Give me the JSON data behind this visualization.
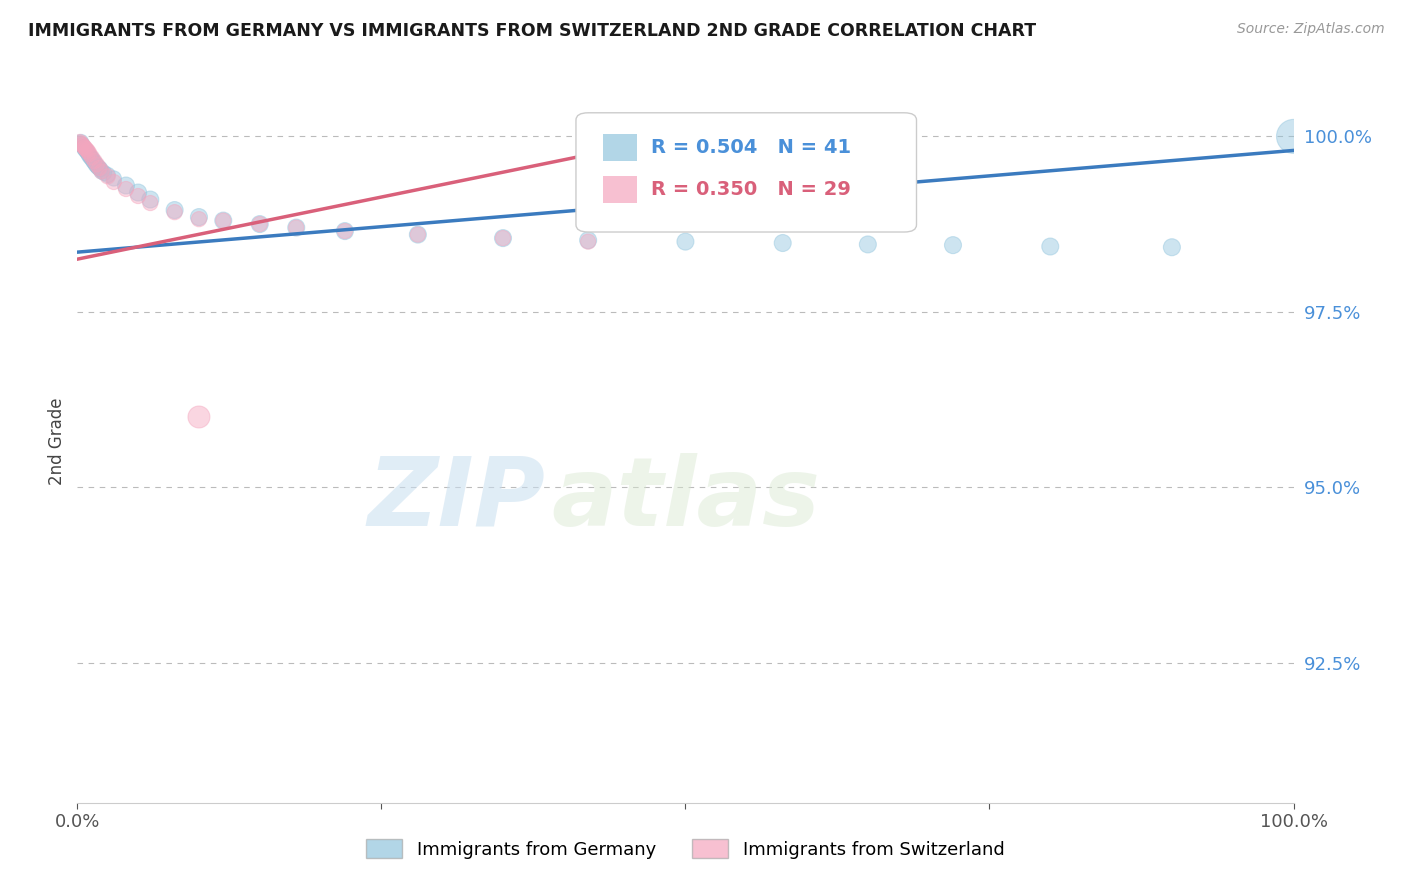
{
  "title": "IMMIGRANTS FROM GERMANY VS IMMIGRANTS FROM SWITZERLAND 2ND GRADE CORRELATION CHART",
  "source": "Source: ZipAtlas.com",
  "ylabel": "2nd Grade",
  "xlim": [
    0.0,
    1.0
  ],
  "ylim": [
    0.905,
    1.008
  ],
  "yticks": [
    0.925,
    0.95,
    0.975,
    1.0
  ],
  "ytick_labels": [
    "92.5%",
    "95.0%",
    "97.5%",
    "100.0%"
  ],
  "legend_blue_label": "Immigrants from Germany",
  "legend_pink_label": "Immigrants from Switzerland",
  "R_blue": 0.504,
  "N_blue": 41,
  "R_pink": 0.35,
  "N_pink": 29,
  "blue_color": "#92c5de",
  "pink_color": "#f4a6be",
  "blue_line_color": "#3b7bbf",
  "pink_line_color": "#d9607a",
  "watermark_zip": "ZIP",
  "watermark_atlas": "atlas",
  "blue_x": [
    0.002,
    0.003,
    0.004,
    0.005,
    0.006,
    0.007,
    0.008,
    0.009,
    0.01,
    0.011,
    0.012,
    0.013,
    0.014,
    0.015,
    0.016,
    0.017,
    0.018,
    0.019,
    0.02,
    0.022,
    0.025,
    0.03,
    0.04,
    0.05,
    0.06,
    0.08,
    0.1,
    0.12,
    0.15,
    0.18,
    0.22,
    0.28,
    0.35,
    0.42,
    0.5,
    0.58,
    0.65,
    0.72,
    0.8,
    0.9,
    1.0
  ],
  "blue_y": [
    0.999,
    0.9992,
    0.9988,
    0.9985,
    0.9982,
    0.998,
    0.9978,
    0.9975,
    0.9972,
    0.997,
    0.9968,
    0.9965,
    0.9963,
    0.996,
    0.9958,
    0.9956,
    0.9955,
    0.9953,
    0.995,
    0.9948,
    0.9945,
    0.994,
    0.993,
    0.992,
    0.991,
    0.9895,
    0.9885,
    0.988,
    0.9875,
    0.987,
    0.9865,
    0.986,
    0.9855,
    0.9852,
    0.985,
    0.9848,
    0.9846,
    0.9845,
    0.9843,
    0.9842,
    1.0
  ],
  "blue_sizes": [
    120,
    120,
    120,
    120,
    120,
    120,
    120,
    120,
    120,
    120,
    120,
    120,
    120,
    120,
    120,
    120,
    120,
    120,
    120,
    120,
    120,
    120,
    150,
    150,
    150,
    150,
    150,
    150,
    150,
    150,
    150,
    150,
    150,
    150,
    150,
    150,
    150,
    150,
    150,
    150,
    600
  ],
  "pink_x": [
    0.002,
    0.003,
    0.004,
    0.005,
    0.006,
    0.007,
    0.008,
    0.009,
    0.01,
    0.012,
    0.014,
    0.016,
    0.018,
    0.02,
    0.025,
    0.03,
    0.04,
    0.05,
    0.06,
    0.08,
    0.1,
    0.12,
    0.15,
    0.18,
    0.22,
    0.28,
    0.35,
    0.42,
    0.1
  ],
  "pink_y": [
    0.9992,
    0.999,
    0.9988,
    0.9986,
    0.9984,
    0.9982,
    0.998,
    0.9978,
    0.9975,
    0.997,
    0.9965,
    0.996,
    0.9955,
    0.995,
    0.9943,
    0.9935,
    0.9925,
    0.9915,
    0.9905,
    0.9892,
    0.9882,
    0.988,
    0.9875,
    0.987,
    0.9865,
    0.986,
    0.9855,
    0.985,
    0.96
  ],
  "pink_sizes": [
    120,
    120,
    120,
    120,
    120,
    120,
    120,
    120,
    120,
    120,
    120,
    120,
    120,
    120,
    120,
    120,
    120,
    120,
    120,
    120,
    120,
    120,
    120,
    120,
    120,
    120,
    120,
    120,
    250
  ]
}
